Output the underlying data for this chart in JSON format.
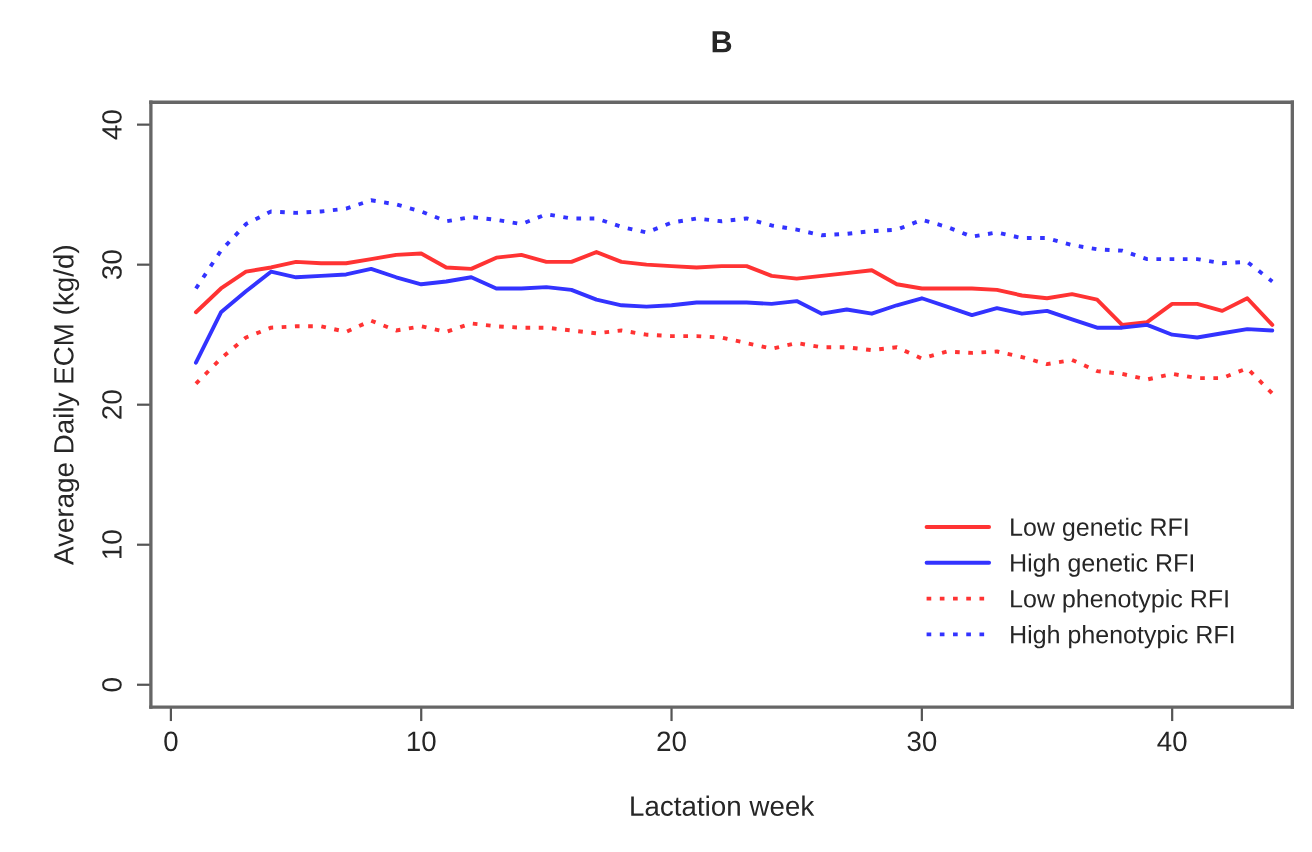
{
  "chart_data": {
    "type": "line",
    "title": "B",
    "xlabel": "Lactation week",
    "ylabel": "Average Daily ECM (kg/d)",
    "x": [
      1,
      2,
      3,
      4,
      5,
      6,
      7,
      8,
      9,
      10,
      11,
      12,
      13,
      14,
      15,
      16,
      17,
      18,
      19,
      20,
      21,
      22,
      23,
      24,
      25,
      26,
      27,
      28,
      29,
      30,
      31,
      32,
      33,
      34,
      35,
      36,
      37,
      38,
      39,
      40,
      41,
      42,
      43,
      44
    ],
    "series": [
      {
        "name": "Low genetic RFI",
        "color": "#ff3333",
        "line_style": "solid",
        "values": [
          26.6,
          28.3,
          29.5,
          29.8,
          30.2,
          30.1,
          30.1,
          30.4,
          30.7,
          30.8,
          29.8,
          29.7,
          30.5,
          30.7,
          30.2,
          30.2,
          30.9,
          30.2,
          30.0,
          29.9,
          29.8,
          29.9,
          29.9,
          29.2,
          29.0,
          29.2,
          29.4,
          29.6,
          28.6,
          28.3,
          28.3,
          28.3,
          28.2,
          27.8,
          27.6,
          27.9,
          27.5,
          25.7,
          25.9,
          27.2,
          27.2,
          26.7,
          27.6,
          25.7
        ]
      },
      {
        "name": "High genetic RFI",
        "color": "#3333ff",
        "line_style": "solid",
        "values": [
          23.0,
          26.6,
          28.1,
          29.5,
          29.1,
          29.2,
          29.3,
          29.7,
          29.1,
          28.6,
          28.8,
          29.1,
          28.3,
          28.3,
          28.4,
          28.2,
          27.5,
          27.1,
          27.0,
          27.1,
          27.3,
          27.3,
          27.3,
          27.2,
          27.4,
          26.5,
          26.8,
          26.5,
          27.1,
          27.6,
          27.0,
          26.4,
          26.9,
          26.5,
          26.7,
          26.1,
          25.5,
          25.5,
          25.7,
          25.0,
          24.8,
          25.1,
          25.4,
          25.3
        ]
      },
      {
        "name": "Low phenotypic RFI",
        "color": "#ff3333",
        "line_style": "dotted",
        "values": [
          21.5,
          23.3,
          24.8,
          25.5,
          25.6,
          25.6,
          25.2,
          26.0,
          25.3,
          25.6,
          25.2,
          25.8,
          25.6,
          25.5,
          25.5,
          25.3,
          25.1,
          25.3,
          25.0,
          24.9,
          24.9,
          24.8,
          24.4,
          24.0,
          24.4,
          24.1,
          24.1,
          23.9,
          24.1,
          23.3,
          23.8,
          23.7,
          23.8,
          23.4,
          22.9,
          23.2,
          22.4,
          22.2,
          21.8,
          22.2,
          21.9,
          21.9,
          22.6,
          20.8
        ]
      },
      {
        "name": "High phenotypic RFI",
        "color": "#3333ff",
        "line_style": "dotted",
        "values": [
          28.3,
          31.0,
          32.9,
          33.8,
          33.7,
          33.8,
          34.0,
          34.6,
          34.3,
          33.8,
          33.1,
          33.4,
          33.2,
          32.9,
          33.6,
          33.3,
          33.3,
          32.7,
          32.3,
          33.0,
          33.3,
          33.1,
          33.3,
          32.8,
          32.5,
          32.1,
          32.2,
          32.4,
          32.5,
          33.2,
          32.7,
          32.0,
          32.3,
          31.9,
          31.9,
          31.4,
          31.1,
          31.0,
          30.4,
          30.4,
          30.4,
          30.1,
          30.2,
          28.8
        ]
      }
    ],
    "xlim": [
      -0.8,
      44.8
    ],
    "ylim": [
      -1.6,
      41.6
    ],
    "xticks": [
      0,
      10,
      20,
      30,
      40
    ],
    "yticks": [
      0,
      10,
      20,
      30,
      40
    ],
    "grid": false,
    "legend": "bottom right",
    "marker": "none"
  }
}
